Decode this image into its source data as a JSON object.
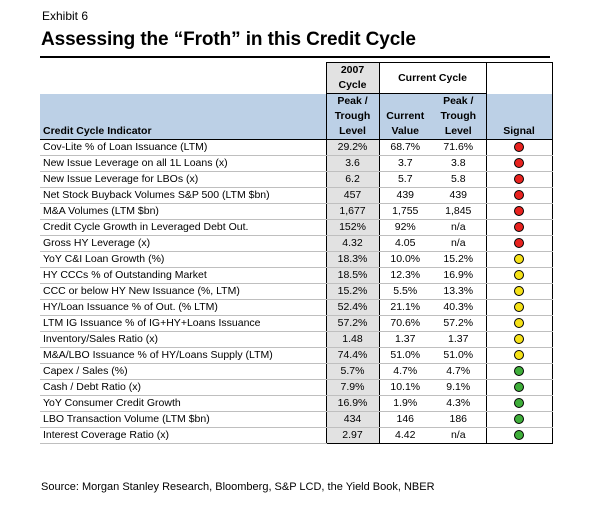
{
  "exhibit": "Exhibit 6",
  "title": "Assessing the “Froth” in this Credit Cycle",
  "header": {
    "cycle2007_line1": "2007",
    "cycle2007_line2": "Cycle",
    "current_cycle": "Current Cycle",
    "indicator": "Credit Cycle Indicator",
    "peak_trough_a1": "Peak /",
    "peak_trough_a2": "Trough",
    "peak_trough_a3": "Level",
    "current_1": "Current",
    "current_2": "Value",
    "peak_trough_b1": "Peak /",
    "peak_trough_b2": "Trough",
    "peak_trough_b3": "Level",
    "signal": "Signal"
  },
  "colors": {
    "red": "#e8231f",
    "yellow": "#f5e117",
    "green": "#3fae3a",
    "band": "#bcd0e6",
    "highlight": "#e2e2e2"
  },
  "rows": [
    {
      "indicator": "Cov-Lite % of Loan Issuance (LTM)",
      "peak2007": "29.2%",
      "current": "68.7%",
      "peakCurrent": "71.6%",
      "signal": "red"
    },
    {
      "indicator": "New Issue Leverage on all 1L Loans (x)",
      "peak2007": "3.6",
      "current": "3.7",
      "peakCurrent": "3.8",
      "signal": "red"
    },
    {
      "indicator": "New Issue Leverage for LBOs (x)",
      "peak2007": "6.2",
      "current": "5.7",
      "peakCurrent": "5.8",
      "signal": "red"
    },
    {
      "indicator": "Net Stock Buyback Volumes S&P 500 (LTM $bn)",
      "peak2007": "457",
      "current": "439",
      "peakCurrent": "439",
      "signal": "red"
    },
    {
      "indicator": "M&A Volumes (LTM $bn)",
      "peak2007": "1,677",
      "current": "1,755",
      "peakCurrent": "1,845",
      "signal": "red"
    },
    {
      "indicator": "Credit Cycle Growth in Leveraged Debt Out.",
      "peak2007": "152%",
      "current": "92%",
      "peakCurrent": "n/a",
      "signal": "red"
    },
    {
      "indicator": "Gross HY Leverage (x)",
      "peak2007": "4.32",
      "current": "4.05",
      "peakCurrent": "n/a",
      "signal": "red"
    },
    {
      "indicator": "YoY C&I Loan Growth (%)",
      "peak2007": "18.3%",
      "current": "10.0%",
      "peakCurrent": "15.2%",
      "signal": "yellow"
    },
    {
      "indicator": "HY CCCs % of Outstanding Market",
      "peak2007": "18.5%",
      "current": "12.3%",
      "peakCurrent": "16.9%",
      "signal": "yellow"
    },
    {
      "indicator": "CCC or below HY New Issuance (%, LTM)",
      "peak2007": "15.2%",
      "current": "5.5%",
      "peakCurrent": "13.3%",
      "signal": "yellow"
    },
    {
      "indicator": "HY/Loan Issuance % of Out. (% LTM)",
      "peak2007": "52.4%",
      "current": "21.1%",
      "peakCurrent": "40.3%",
      "signal": "yellow"
    },
    {
      "indicator": "LTM IG Issuance % of IG+HY+Loans Issuance",
      "peak2007": "57.2%",
      "current": "70.6%",
      "peakCurrent": "57.2%",
      "signal": "yellow"
    },
    {
      "indicator": "Inventory/Sales Ratio (x)",
      "peak2007": "1.48",
      "current": "1.37",
      "peakCurrent": "1.37",
      "signal": "yellow"
    },
    {
      "indicator": "M&A/LBO Issuance % of HY/Loans Supply (LTM)",
      "peak2007": "74.4%",
      "current": "51.0%",
      "peakCurrent": "51.0%",
      "signal": "yellow"
    },
    {
      "indicator": "Capex / Sales (%)",
      "peak2007": "5.7%",
      "current": "4.7%",
      "peakCurrent": "4.7%",
      "signal": "green"
    },
    {
      "indicator": "Cash / Debt Ratio (x)",
      "peak2007": "7.9%",
      "current": "10.1%",
      "peakCurrent": "9.1%",
      "signal": "green"
    },
    {
      "indicator": "YoY Consumer Credit Growth",
      "peak2007": "16.9%",
      "current": "1.9%",
      "peakCurrent": "4.3%",
      "signal": "green"
    },
    {
      "indicator": "LBO Transaction Volume (LTM $bn)",
      "peak2007": "434",
      "current": "146",
      "peakCurrent": "186",
      "signal": "green"
    },
    {
      "indicator": "Interest Coverage Ratio (x)",
      "peak2007": "2.97",
      "current": "4.42",
      "peakCurrent": "n/a",
      "signal": "green"
    }
  ],
  "source": "Source: Morgan Stanley Research, Bloomberg, S&P LCD, the Yield Book, NBER"
}
